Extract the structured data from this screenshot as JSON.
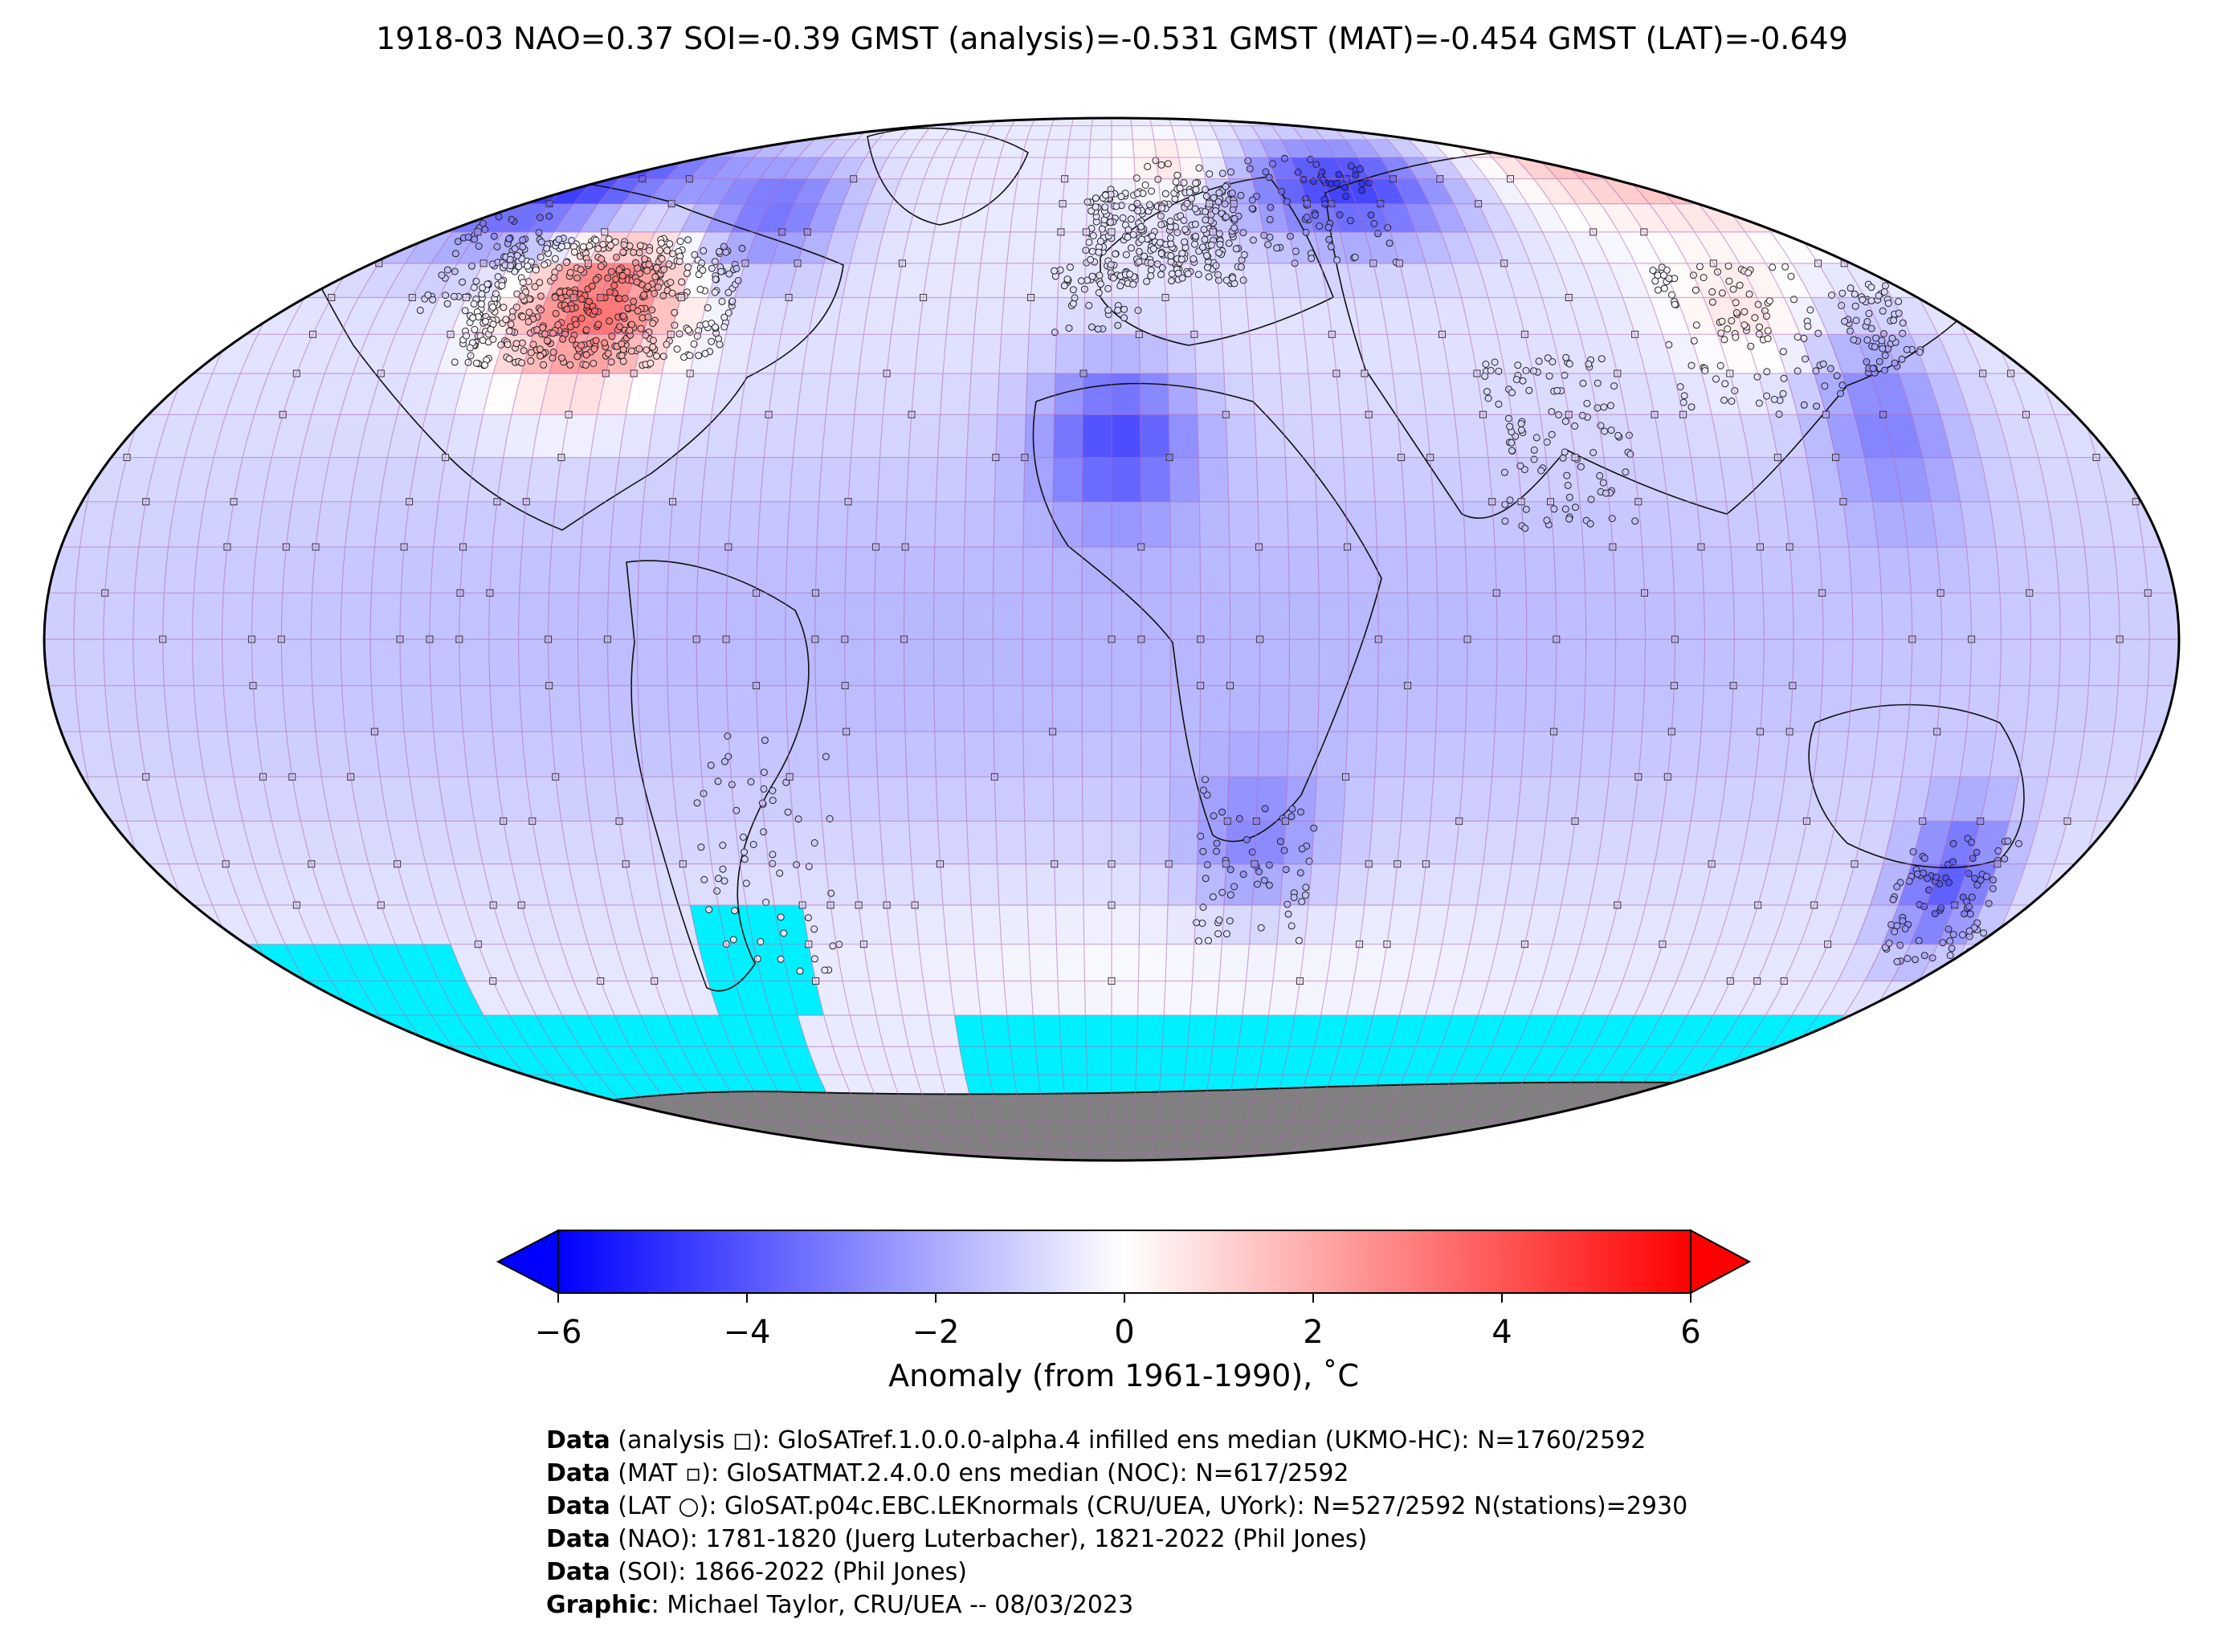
{
  "title": "1918-03 NAO=0.37 SOI=-0.39 GMST (analysis)=-0.531 GMST (MAT)=-0.454 GMST (LAT)=-0.649",
  "colors": {
    "no_data": "#00f0ff",
    "antarctica": "#808080",
    "grid_lines": "#b06ab4",
    "cold": "#0000ff",
    "neutral": "#ffffff",
    "warm": "#ff0000"
  },
  "map": {
    "projection": "robinson",
    "anomaly_regions": [
      {
        "name": "western Canada cold",
        "lon": [
          -140,
          -90
        ],
        "lat": [
          50,
          72
        ],
        "anomaly": -4.5
      },
      {
        "name": "central United States warm",
        "lon": [
          -108,
          -82
        ],
        "lat": [
          30,
          50
        ],
        "anomaly": 4.2
      },
      {
        "name": "eastern Canada cold",
        "lon": [
          -80,
          -55
        ],
        "lat": [
          45,
          62
        ],
        "anomaly": -2.5
      },
      {
        "name": "Alaska mild",
        "lon": [
          -170,
          -145
        ],
        "lat": [
          55,
          70
        ],
        "anomaly": 1.5
      },
      {
        "name": "western Russia cold",
        "lon": [
          30,
          70
        ],
        "lat": [
          50,
          68
        ],
        "anomaly": -4.2
      },
      {
        "name": "Siberia warm",
        "lon": [
          85,
          170
        ],
        "lat": [
          55,
          75
        ],
        "anomaly": 2.8
      },
      {
        "name": "Sahara cold",
        "lon": [
          -10,
          12
        ],
        "lat": [
          15,
          30
        ],
        "anomaly": -3.2
      },
      {
        "name": "Scandinavia mild",
        "lon": [
          5,
          25
        ],
        "lat": [
          58,
          70
        ],
        "anomaly": 1.5
      },
      {
        "name": "eastern Australia cold",
        "lon": [
          140,
          155
        ],
        "lat": [
          -35,
          -20
        ],
        "anomaly": -3.0
      },
      {
        "name": "western Pacific cold",
        "lon": [
          125,
          145
        ],
        "lat": [
          15,
          35
        ],
        "anomaly": -2.2
      },
      {
        "name": "East Asia mild",
        "lon": [
          105,
          130
        ],
        "lat": [
          30,
          45
        ],
        "anomaly": 1.2
      },
      {
        "name": "tropical Pacific cool",
        "lon": [
          -180,
          180
        ],
        "lat": [
          -20,
          20
        ],
        "anomaly": -1.2
      },
      {
        "name": "southern Africa cool",
        "lon": [
          15,
          35
        ],
        "lat": [
          -30,
          -15
        ],
        "anomaly": -1.8
      },
      {
        "name": "southern mid-latitudes mild",
        "lon": [
          -30,
          60
        ],
        "lat": [
          -45,
          -30
        ],
        "anomaly": 0.5
      }
    ]
  },
  "colorbar": {
    "min": -6,
    "max": 6,
    "ticks": [
      "−6",
      "−4",
      "−2",
      "0",
      "2",
      "4",
      "6"
    ],
    "label": "Anomaly (from 1961-1990), ˚C"
  },
  "credits": [
    {
      "bold": "Data",
      "text": " (analysis ◻): GloSATref.1.0.0.0-alpha.4 infilled ens median (UKMO-HC): N=1760/2592"
    },
    {
      "bold": "Data",
      "text": " (MAT ▫): GloSATMAT.2.4.0.0 ens median (NOC): N=617/2592"
    },
    {
      "bold": "Data",
      "text": " (LAT ○): GloSAT.p04c.EBC.LEKnormals (CRU/UEA, UYork): N=527/2592 N(stations)=2930"
    },
    {
      "bold": "Data",
      "text": " (NAO): 1781-1820 (Juerg Luterbacher), 1821-2022 (Phil Jones)"
    },
    {
      "bold": "Data",
      "text": " (SOI): 1866-2022 (Phil Jones)"
    },
    {
      "bold": "Graphic",
      "text": ": Michael Taylor, CRU/UEA -- 08/03/2023"
    }
  ]
}
